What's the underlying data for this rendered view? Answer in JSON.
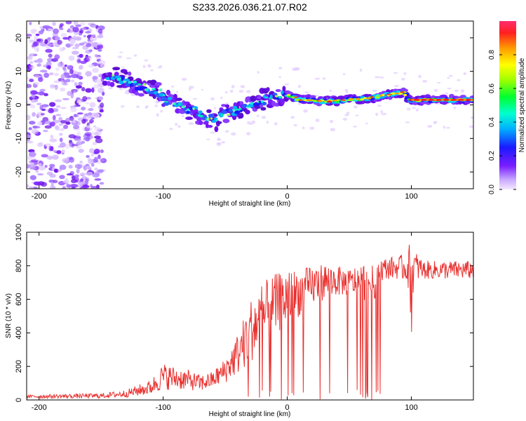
{
  "title": "S233.2026.036.21.07.R02",
  "chart_data": [
    {
      "type": "heatmap",
      "name": "spectrogram",
      "title": "S233.2026.036.21.07.R02",
      "xlabel": "Height of straight line (km)",
      "ylabel": "Frequency (Hz)",
      "xlim": [
        -210,
        150
      ],
      "ylim": [
        -25,
        25
      ],
      "xticks": [
        -200,
        -100,
        0,
        100
      ],
      "yticks": [
        -20,
        -10,
        0,
        10,
        20
      ],
      "ridge": {
        "x": [
          -145,
          -135,
          -125,
          -115,
          -105,
          -95,
          -85,
          -75,
          -65,
          -57,
          -50,
          -40,
          -30,
          -20,
          -10,
          0,
          10,
          20,
          30,
          40,
          50,
          60,
          70,
          80,
          90,
          95,
          98,
          105,
          115,
          125,
          135,
          150
        ],
        "y": [
          8.5,
          8,
          6.5,
          5.5,
          4,
          1,
          -1,
          -2,
          -3.5,
          -4.5,
          -2.5,
          -2,
          0,
          1.5,
          2.5,
          3,
          1.5,
          1.5,
          1,
          1.2,
          1.6,
          1.8,
          2.2,
          3,
          3.5,
          3.8,
          1.5,
          1.4,
          1.5,
          1.5,
          1.5,
          1.5
        ]
      },
      "colorbar": {
        "label": "Normalized spectral amplitude",
        "range": [
          0,
          1
        ],
        "ticks": [
          "0.0",
          "0.2",
          "0.4",
          "0.6",
          "0.8"
        ]
      }
    },
    {
      "type": "line",
      "name": "snr",
      "xlabel": "Height of straight line (km)",
      "ylabel": "SNR (10 * v/v)",
      "xlim": [
        -210,
        150
      ],
      "ylim": [
        0,
        1000
      ],
      "xticks": [
        -200,
        -100,
        0,
        100
      ],
      "yticks": [
        0,
        200,
        400,
        600,
        800,
        1000
      ],
      "color": "#e8312f",
      "envelope": {
        "x": [
          -210,
          -180,
          -150,
          -130,
          -110,
          -100,
          -90,
          -80,
          -70,
          -60,
          -50,
          -40,
          -30,
          -20,
          -10,
          0,
          10,
          20,
          30,
          40,
          50,
          60,
          70,
          74,
          80,
          90,
          97,
          100,
          102,
          110,
          130,
          150
        ],
        "low": [
          10,
          10,
          10,
          15,
          30,
          60,
          60,
          60,
          50,
          70,
          100,
          150,
          220,
          300,
          380,
          450,
          500,
          560,
          600,
          620,
          620,
          600,
          580,
          700,
          720,
          720,
          700,
          380,
          700,
          720,
          720,
          720
        ],
        "high": [
          30,
          35,
          40,
          60,
          120,
          220,
          200,
          180,
          150,
          170,
          250,
          400,
          600,
          700,
          750,
          780,
          780,
          800,
          820,
          800,
          780,
          820,
          800,
          850,
          850,
          860,
          880,
          1000,
          900,
          830,
          830,
          830
        ]
      }
    }
  ]
}
